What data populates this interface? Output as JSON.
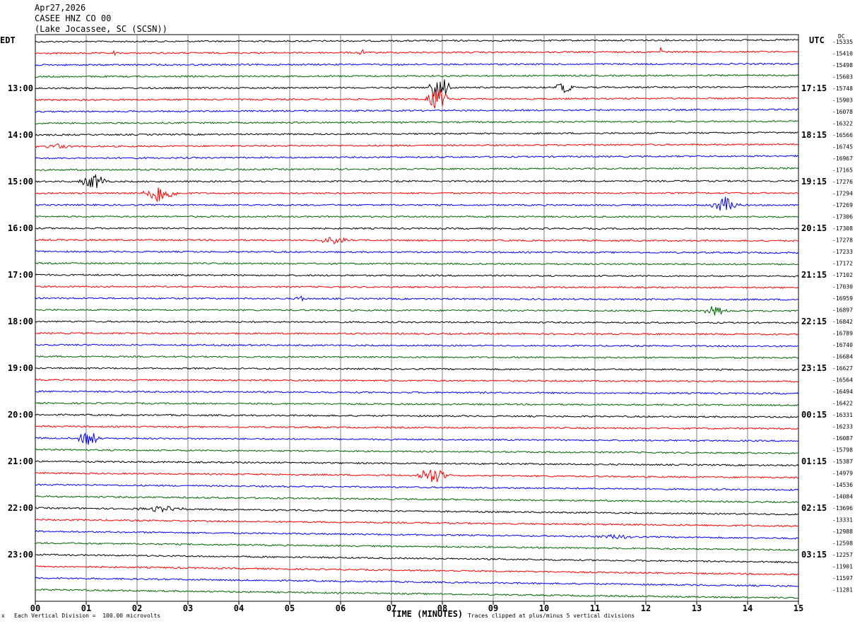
{
  "header": {
    "date": "Apr27,2026",
    "station": "CASEE HNZ CO 00",
    "location": "(Lake Jocassee, SC (SCSN))"
  },
  "left_tz": "EDT",
  "right_tz": "UTC",
  "dc_label": "DC",
  "xlabel": "TIME (MINUTES)",
  "footer": {
    "scale_note": "Each Vertical Division =  100.00 microvolts",
    "clip_note": "Traces clipped at plus/minus 5 vertical divisions",
    "corner_mark": "x"
  },
  "colors": {
    "cycle": [
      "#000000",
      "#ff0000",
      "#0000ff",
      "#006400"
    ],
    "grid": "#808080"
  },
  "chart_data": {
    "type": "line",
    "title": "CASEE HNZ CO 00",
    "xlabel": "TIME (MINUTES)",
    "xlim": [
      0,
      15
    ],
    "xticks": [
      "00",
      "01",
      "02",
      "03",
      "04",
      "05",
      "06",
      "07",
      "08",
      "09",
      "10",
      "11",
      "12",
      "13",
      "14",
      "15"
    ],
    "trace_count": 48,
    "left_time_labels": [
      {
        "row": 4,
        "label": "13:00"
      },
      {
        "row": 8,
        "label": "14:00"
      },
      {
        "row": 12,
        "label": "15:00"
      },
      {
        "row": 16,
        "label": "16:00"
      },
      {
        "row": 20,
        "label": "17:00"
      },
      {
        "row": 24,
        "label": "18:00"
      },
      {
        "row": 28,
        "label": "19:00"
      },
      {
        "row": 32,
        "label": "20:00"
      },
      {
        "row": 36,
        "label": "21:00"
      },
      {
        "row": 40,
        "label": "22:00"
      },
      {
        "row": 44,
        "label": "23:00"
      }
    ],
    "right_time_labels": [
      {
        "row": 4,
        "label": "17:15"
      },
      {
        "row": 8,
        "label": "18:15"
      },
      {
        "row": 12,
        "label": "19:15"
      },
      {
        "row": 16,
        "label": "20:15"
      },
      {
        "row": 20,
        "label": "21:15"
      },
      {
        "row": 24,
        "label": "22:15"
      },
      {
        "row": 28,
        "label": "23:15"
      },
      {
        "row": 32,
        "label": "00:15"
      },
      {
        "row": 36,
        "label": "01:15"
      },
      {
        "row": 40,
        "label": "02:15"
      },
      {
        "row": 44,
        "label": "03:15"
      }
    ],
    "dc_offsets": [
      "-15335",
      "-15410",
      "-15498",
      "-15603",
      "-15748",
      "-15903",
      "-16078",
      "-16322",
      "-16566",
      "-16745",
      "-16967",
      "-17165",
      "-17276",
      "-17294",
      "-17269",
      "-17306",
      "-17308",
      "-17278",
      "-17233",
      "-17172",
      "-17102",
      "-17030",
      "-16959",
      "-16897",
      "-16842",
      "-16789",
      "-16740",
      "-16684",
      "-16627",
      "-16564",
      "-16494",
      "-16422",
      "-16331",
      "-16233",
      "-16087",
      "-15798",
      "-15387",
      "-14979",
      "-14536",
      "-14084",
      "-13696",
      "-13331",
      "-12988",
      "-12598",
      "-12257",
      "-11901",
      "-11597",
      "-11281"
    ],
    "trace_drift": [
      0.15,
      0.15,
      0.1,
      0.12,
      0.12,
      0.15,
      0.18,
      0.18,
      0.2,
      0.2,
      0.2,
      0.15,
      0.05,
      0.02,
      -0.02,
      -0.02,
      -0.05,
      -0.08,
      -0.1,
      -0.1,
      -0.12,
      -0.1,
      -0.12,
      -0.1,
      -0.12,
      -0.1,
      -0.12,
      -0.12,
      -0.15,
      -0.15,
      -0.18,
      -0.18,
      -0.2,
      -0.2,
      -0.25,
      -0.3,
      -0.35,
      -0.4,
      -0.45,
      -0.5,
      -0.55,
      -0.55,
      -0.6,
      -0.6,
      -0.65,
      -0.7,
      -0.7,
      -0.72
    ],
    "events": [
      {
        "trace": 1,
        "minute": 1.55,
        "amp": 1.0,
        "width": 0.05
      },
      {
        "trace": 1,
        "minute": 6.4,
        "amp": 0.8,
        "width": 0.1
      },
      {
        "trace": 1,
        "minute": 12.3,
        "amp": 1.2,
        "width": 0.06
      },
      {
        "trace": 2,
        "minute": 7.15,
        "amp": 0.7,
        "width": 0.06
      },
      {
        "trace": 4,
        "minute": 7.95,
        "amp": 3.0,
        "width": 0.25
      },
      {
        "trace": 5,
        "minute": 7.9,
        "amp": 2.6,
        "width": 0.25
      },
      {
        "trace": 4,
        "minute": 10.4,
        "amp": 1.0,
        "width": 0.3
      },
      {
        "trace": 9,
        "minute": 0.45,
        "amp": 0.6,
        "width": 0.3
      },
      {
        "trace": 12,
        "minute": 1.15,
        "amp": 1.5,
        "width": 0.35
      },
      {
        "trace": 13,
        "minute": 2.45,
        "amp": 2.0,
        "width": 0.4
      },
      {
        "trace": 14,
        "minute": 13.55,
        "amp": 1.6,
        "width": 0.35
      },
      {
        "trace": 17,
        "minute": 5.85,
        "amp": 0.9,
        "width": 0.35
      },
      {
        "trace": 22,
        "minute": 5.2,
        "amp": 0.8,
        "width": 0.1
      },
      {
        "trace": 23,
        "minute": 13.35,
        "amp": 1.0,
        "width": 0.3
      },
      {
        "trace": 34,
        "minute": 1.05,
        "amp": 1.6,
        "width": 0.3
      },
      {
        "trace": 37,
        "minute": 7.8,
        "amp": 1.7,
        "width": 0.4
      },
      {
        "trace": 40,
        "minute": 2.5,
        "amp": 0.6,
        "width": 0.6
      },
      {
        "trace": 42,
        "minute": 11.4,
        "amp": 0.6,
        "width": 0.4
      }
    ]
  }
}
